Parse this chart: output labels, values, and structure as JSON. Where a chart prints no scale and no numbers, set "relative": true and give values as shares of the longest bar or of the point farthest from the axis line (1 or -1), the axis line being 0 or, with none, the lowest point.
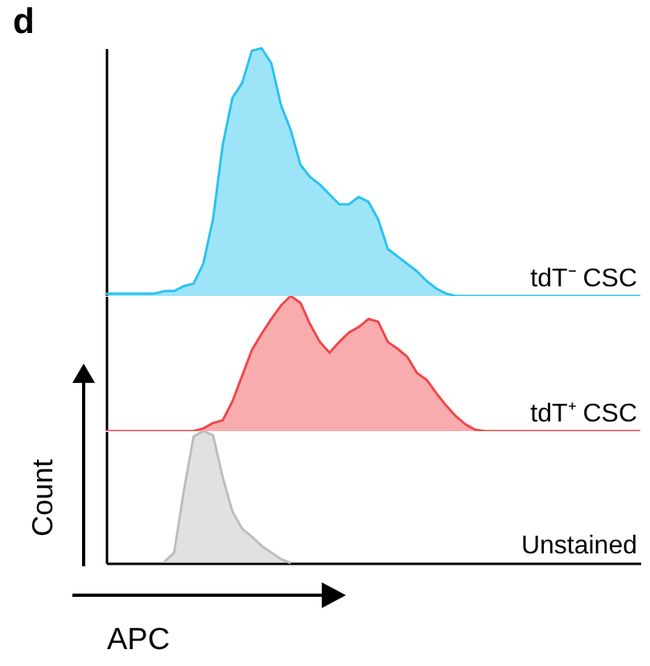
{
  "chart_data": [
    {
      "type": "area",
      "title": "d",
      "relative": true,
      "categories": [
        null,
        null,
        null,
        null,
        null,
        null,
        null,
        null,
        null,
        null,
        null,
        null,
        null,
        null,
        null,
        null,
        null,
        null,
        null,
        null,
        null,
        null,
        null,
        null,
        null,
        null,
        null,
        null,
        null,
        null,
        null,
        null,
        null,
        null,
        null,
        null,
        null,
        null,
        null,
        null,
        null,
        null,
        null,
        null,
        null,
        null,
        null,
        null,
        null,
        null,
        null,
        null,
        null,
        null,
        null,
        null
      ],
      "series": [
        {
          "name": "tdT⁻ CSC",
          "color": "#29c3ef",
          "values": [
            0.01,
            0.01,
            0.01,
            0.01,
            0.01,
            0.01,
            0.02,
            0.02,
            0.04,
            0.05,
            0.13,
            0.31,
            0.61,
            0.8,
            0.86,
            0.99,
            1.0,
            0.94,
            0.77,
            0.67,
            0.53,
            0.48,
            0.45,
            0.41,
            0.37,
            0.37,
            0.4,
            0.38,
            0.31,
            0.19,
            0.16,
            0.13,
            0.1,
            0.06,
            0.03,
            0.01,
            0,
            0,
            0,
            0,
            0,
            0,
            0,
            0,
            0,
            0,
            0,
            0,
            0,
            0,
            0,
            0,
            0,
            0,
            0,
            0
          ]
        }
      ]
    },
    {
      "type": "area",
      "relative": true,
      "categories": [
        null,
        null,
        null,
        null,
        null,
        null,
        null,
        null,
        null,
        null,
        null,
        null,
        null,
        null,
        null,
        null,
        null,
        null,
        null,
        null,
        null,
        null,
        null,
        null,
        null,
        null,
        null,
        null,
        null,
        null,
        null,
        null,
        null,
        null,
        null,
        null,
        null,
        null,
        null,
        null,
        null,
        null,
        null,
        null,
        null,
        null,
        null,
        null,
        null,
        null,
        null,
        null,
        null,
        null,
        null,
        null
      ],
      "series": [
        {
          "name": "tdT⁺ CSC",
          "color": "#f0474b",
          "values": [
            0,
            0,
            0,
            0,
            0,
            0,
            0,
            0,
            0,
            0,
            0.02,
            0.06,
            0.08,
            0.22,
            0.41,
            0.6,
            0.72,
            0.83,
            0.93,
            1.0,
            0.95,
            0.79,
            0.66,
            0.58,
            0.66,
            0.73,
            0.77,
            0.83,
            0.81,
            0.66,
            0.61,
            0.55,
            0.43,
            0.38,
            0.28,
            0.19,
            0.11,
            0.05,
            0.01,
            0,
            0,
            0,
            0,
            0,
            0,
            0,
            0,
            0,
            0,
            0,
            0,
            0,
            0,
            0,
            0,
            0
          ]
        }
      ]
    },
    {
      "type": "area",
      "xlabel": "APC",
      "ylabel": "Count",
      "relative": true,
      "categories": [
        null,
        null,
        null,
        null,
        null,
        null,
        null,
        null,
        null,
        null,
        null,
        null,
        null,
        null,
        null,
        null,
        null,
        null,
        null,
        null,
        null,
        null,
        null,
        null,
        null,
        null,
        null,
        null,
        null,
        null,
        null,
        null,
        null,
        null,
        null,
        null,
        null,
        null,
        null,
        null,
        null,
        null,
        null,
        null,
        null,
        null,
        null,
        null,
        null,
        null,
        null,
        null,
        null,
        null,
        null,
        null
      ],
      "series": [
        {
          "name": "Unstained",
          "color": "#bdbdbd",
          "values": [
            null,
            null,
            null,
            null,
            null,
            null,
            0.01,
            0.08,
            0.55,
            0.96,
            1.0,
            0.97,
            0.65,
            0.39,
            0.26,
            0.2,
            0.13,
            0.08,
            0.03,
            0,
            null,
            null,
            null,
            null,
            null,
            null,
            null,
            null,
            null,
            null,
            null,
            null,
            null,
            null,
            null,
            null,
            null,
            null,
            null,
            null,
            null,
            null,
            null,
            null,
            null,
            null,
            null,
            null,
            null,
            null,
            null,
            null,
            null,
            null,
            null,
            null
          ]
        }
      ]
    }
  ]
}
